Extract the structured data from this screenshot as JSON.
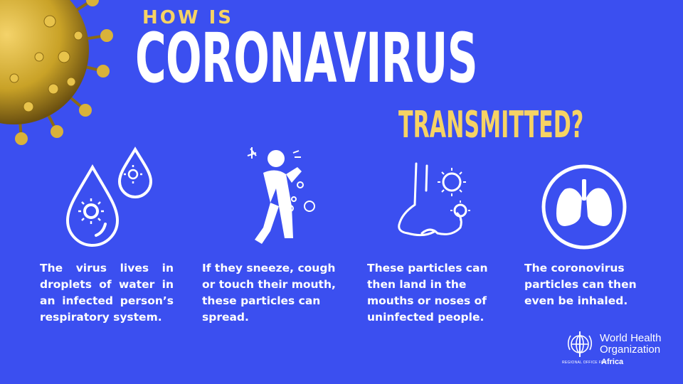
{
  "header": {
    "kicker": "HOW IS",
    "title": "CORONAVIRUS",
    "subtitle": "TRANSMITTED?"
  },
  "steps": [
    {
      "icon": "droplets-virus-icon",
      "text": "The virus lives in droplets of water in an infected person’s respiratory system."
    },
    {
      "icon": "person-coughing-icon",
      "text": "If they sneeze, cough or touch their mouth, these particles can spread."
    },
    {
      "icon": "nose-virus-icon",
      "text": "These particles can then land in the mouths or noses of uninfected people."
    },
    {
      "icon": "lungs-icon",
      "text": "The coronovirus particles can then even be inhaled."
    }
  ],
  "logo": {
    "name": "World Health Organization",
    "region_label": "REGIONAL OFFICE FOR",
    "region": "Africa"
  },
  "colors": {
    "background": "#3b4ff0",
    "accent": "#f6d364",
    "text": "#ffffff",
    "virus": "#c9a227"
  }
}
